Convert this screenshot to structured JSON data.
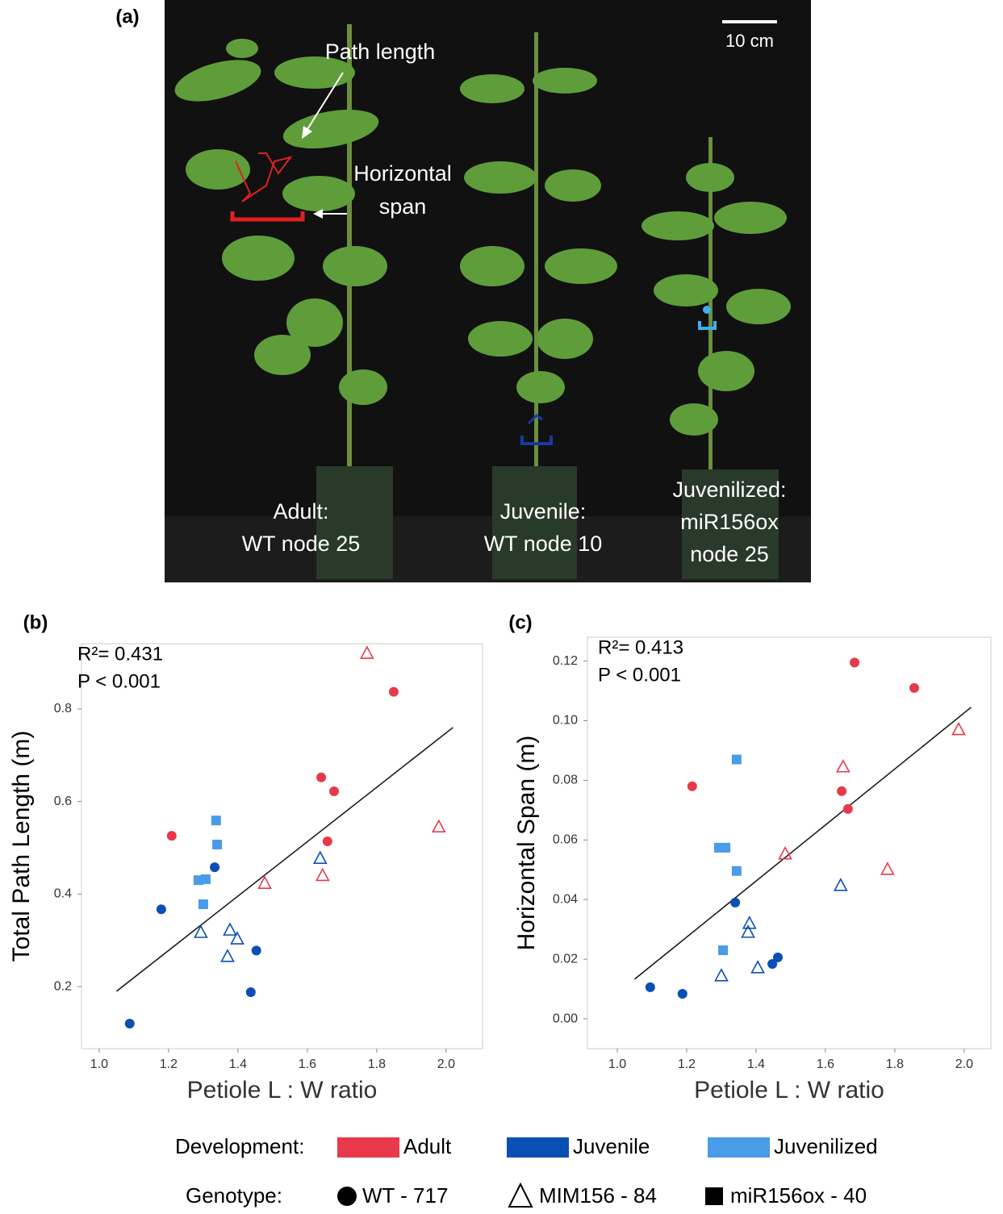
{
  "panel_a": {
    "label": "(a)",
    "scale_bar": "10 cm",
    "path_length": "Path length",
    "horizontal_span": [
      "Horizontal",
      "span"
    ],
    "plants": [
      [
        "Adult:",
        "WT node 25"
      ],
      [
        "Juvenile:",
        "WT node 10"
      ],
      [
        "Juvenilized:",
        "miR156ox",
        "node 25"
      ]
    ]
  },
  "chart_data": [
    {
      "type": "scatter",
      "panel_label": "(b)",
      "annotations": [
        "R²= 0.431",
        "P < 0.001"
      ],
      "xlabel": "Petiole L : W ratio",
      "ylabel": "Total Path Length (m)",
      "xlim": [
        0.949,
        2.105
      ],
      "ylim": [
        0.066,
        0.941
      ],
      "xticks": [
        {
          "value": 1.0,
          "label": "1.0"
        },
        1.2,
        1.4,
        1.6,
        1.8,
        {
          "value": 2.0,
          "label": "2.0"
        }
      ],
      "yticks": [
        0.2,
        0.4,
        0.6,
        0.8
      ],
      "series": [
        {
          "color": "#e8394a",
          "marker": "circle",
          "x": [
            1.209,
            1.849,
            1.64,
            1.677,
            1.658
          ],
          "y": [
            0.526,
            0.837,
            0.652,
            0.622,
            0.514
          ]
        },
        {
          "color": "#e8394a",
          "marker": "triangle",
          "x": [
            1.772,
            1.979,
            1.644,
            1.477
          ],
          "y": [
            0.92,
            0.545,
            0.44,
            0.423
          ]
        },
        {
          "color": "#0a4fb4",
          "marker": "circle",
          "x": [
            1.088,
            1.179,
            1.333,
            1.453,
            1.437
          ],
          "y": [
            0.12,
            0.367,
            0.458,
            0.278,
            0.188
          ]
        },
        {
          "color": "#0a4fb4",
          "marker": "triangle",
          "x": [
            1.293,
            1.377,
            1.398,
            1.37,
            1.637
          ],
          "y": [
            0.317,
            0.322,
            0.303,
            0.265,
            0.477
          ]
        },
        {
          "color": "#4a9be8",
          "marker": "square",
          "x": [
            1.337,
            1.34,
            1.286,
            1.307,
            1.3
          ],
          "y": [
            0.559,
            0.507,
            0.43,
            0.432,
            0.378
          ]
        }
      ],
      "fit": {
        "x": [
          1.05,
          2.02
        ],
        "y": [
          0.19,
          0.76
        ]
      }
    },
    {
      "type": "scatter",
      "panel_label": "(c)",
      "annotations": [
        "R²= 0.413",
        "P < 0.001"
      ],
      "xlabel": "Petiole L : W ratio",
      "ylabel": "Horizontal Span (m)",
      "xlim": [
        0.914,
        2.077
      ],
      "ylim": [
        -0.01,
        0.128
      ],
      "xticks": [
        {
          "value": 1.0,
          "label": "1.0"
        },
        1.2,
        1.4,
        1.6,
        1.8,
        {
          "value": 2.0,
          "label": "2.0"
        }
      ],
      "yticks": [
        {
          "value": 0.0,
          "label": "0.00"
        },
        0.02,
        0.04,
        0.06,
        0.08,
        {
          "value": 0.1,
          "label": "0.10"
        },
        0.12
      ],
      "series": [
        {
          "color": "#e8394a",
          "marker": "circle",
          "x": [
            1.216,
            1.684,
            1.856,
            1.647,
            1.665
          ],
          "y": [
            0.078,
            0.1195,
            0.111,
            0.0764,
            0.0704
          ]
        },
        {
          "color": "#e8394a",
          "marker": "triangle",
          "x": [
            1.651,
            1.484,
            1.779,
            1.984
          ],
          "y": [
            0.0845,
            0.0553,
            0.0501,
            0.097
          ]
        },
        {
          "color": "#0a4fb4",
          "marker": "circle",
          "x": [
            1.095,
            1.188,
            1.34,
            1.447,
            1.463
          ],
          "y": [
            0.0106,
            0.0084,
            0.039,
            0.0184,
            0.0206
          ]
        },
        {
          "color": "#0a4fb4",
          "marker": "triangle",
          "x": [
            1.3,
            1.381,
            1.377,
            1.405,
            1.644
          ],
          "y": [
            0.0144,
            0.032,
            0.029,
            0.0171,
            0.0447
          ]
        },
        {
          "color": "#4a9be8",
          "marker": "square",
          "x": [
            1.344,
            1.293,
            1.312,
            1.344,
            1.305
          ],
          "y": [
            0.087,
            0.0574,
            0.0574,
            0.0496,
            0.023
          ]
        }
      ],
      "fit": {
        "x": [
          1.05,
          2.02
        ],
        "y": [
          0.0133,
          0.1045
        ]
      }
    }
  ],
  "legend": {
    "development_title": "Development:",
    "development": [
      {
        "label": "Adult",
        "color": "#e8394a"
      },
      {
        "label": "Juvenile",
        "color": "#0a4fb4"
      },
      {
        "label": "Juvenilized",
        "color": "#4a9be8"
      }
    ],
    "genotype_title": "Genotype:",
    "genotype": [
      {
        "label": "WT - 717",
        "marker": "circle"
      },
      {
        "label": "MIM156 - 84",
        "marker": "triangle"
      },
      {
        "label": "miR156ox - 40",
        "marker": "square"
      }
    ]
  }
}
